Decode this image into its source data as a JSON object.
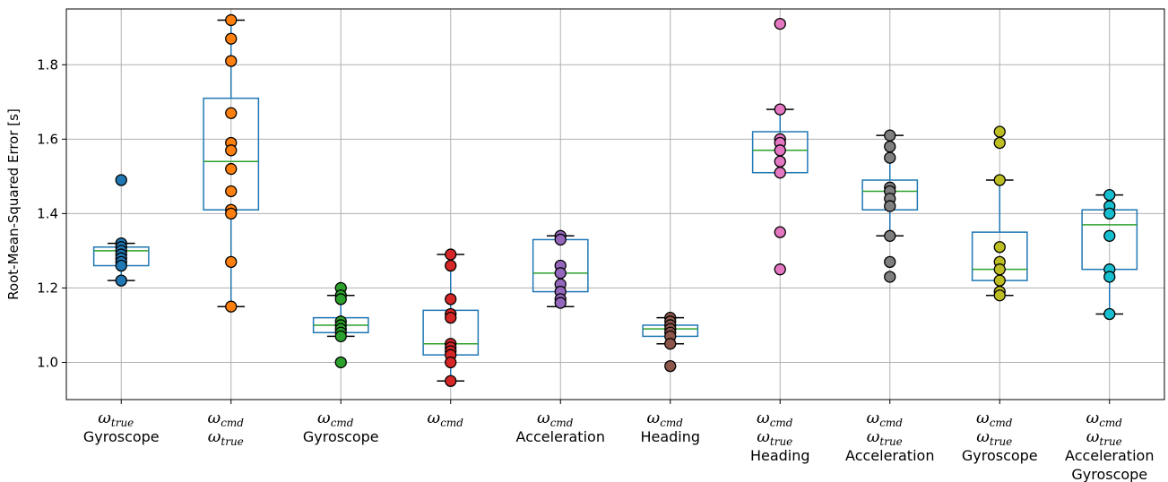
{
  "chart_data": {
    "type": "box",
    "ylabel": "Root-Mean-Squared Error [s]",
    "ylim": [
      0.9,
      1.95
    ],
    "yticks": [
      1.0,
      1.2,
      1.4,
      1.6,
      1.8
    ],
    "grid": true,
    "categories": [
      {
        "lines": [
          {
            "omega": "ω",
            "sub": "true"
          },
          {
            "text": "Gyroscope"
          }
        ]
      },
      {
        "lines": [
          {
            "omega": "ω",
            "sub": "cmd"
          },
          {
            "omega": "ω",
            "sub": "true"
          }
        ]
      },
      {
        "lines": [
          {
            "omega": "ω",
            "sub": "cmd"
          },
          {
            "text": "Gyroscope"
          }
        ]
      },
      {
        "lines": [
          {
            "omega": "ω",
            "sub": "cmd"
          }
        ]
      },
      {
        "lines": [
          {
            "omega": "ω",
            "sub": "cmd"
          },
          {
            "text": "Acceleration"
          }
        ]
      },
      {
        "lines": [
          {
            "omega": "ω",
            "sub": "cmd"
          },
          {
            "text": "Heading"
          }
        ]
      },
      {
        "lines": [
          {
            "omega": "ω",
            "sub": "cmd"
          },
          {
            "omega": "ω",
            "sub": "true"
          },
          {
            "text": "Heading"
          }
        ]
      },
      {
        "lines": [
          {
            "omega": "ω",
            "sub": "cmd"
          },
          {
            "omega": "ω",
            "sub": "true"
          },
          {
            "text": "Acceleration"
          }
        ]
      },
      {
        "lines": [
          {
            "omega": "ω",
            "sub": "cmd"
          },
          {
            "omega": "ω",
            "sub": "true"
          },
          {
            "text": "Gyroscope"
          }
        ]
      },
      {
        "lines": [
          {
            "omega": "ω",
            "sub": "cmd"
          },
          {
            "omega": "ω",
            "sub": "true"
          },
          {
            "text": "Acceleration"
          },
          {
            "text": "Gyroscope"
          }
        ]
      }
    ],
    "boxes": [
      {
        "whisker_low": 1.22,
        "q1": 1.26,
        "median": 1.3,
        "q3": 1.31,
        "whisker_high": 1.32,
        "points": [
          1.49,
          1.32,
          1.31,
          1.3,
          1.29,
          1.28,
          1.27,
          1.26,
          1.22
        ],
        "color": "#1f77b4"
      },
      {
        "whisker_low": 1.15,
        "q1": 1.41,
        "median": 1.54,
        "q3": 1.71,
        "whisker_high": 1.92,
        "points": [
          1.92,
          1.87,
          1.81,
          1.67,
          1.59,
          1.57,
          1.52,
          1.46,
          1.41,
          1.4,
          1.27,
          1.15
        ],
        "color": "#ff7f0e"
      },
      {
        "whisker_low": 1.07,
        "q1": 1.08,
        "median": 1.1,
        "q3": 1.12,
        "whisker_high": 1.18,
        "points": [
          1.2,
          1.18,
          1.17,
          1.11,
          1.1,
          1.09,
          1.08,
          1.07,
          1.0
        ],
        "color": "#2ca02c"
      },
      {
        "whisker_low": 0.95,
        "q1": 1.02,
        "median": 1.05,
        "q3": 1.14,
        "whisker_high": 1.29,
        "points": [
          1.29,
          1.26,
          1.17,
          1.13,
          1.12,
          1.05,
          1.04,
          1.03,
          1.02,
          1.0,
          0.95
        ],
        "color": "#d62728"
      },
      {
        "whisker_low": 1.15,
        "q1": 1.19,
        "median": 1.24,
        "q3": 1.33,
        "whisker_high": 1.34,
        "points": [
          1.34,
          1.33,
          1.26,
          1.24,
          1.21,
          1.19,
          1.17,
          1.16
        ],
        "color": "#9467bd"
      },
      {
        "whisker_low": 1.05,
        "q1": 1.07,
        "median": 1.09,
        "q3": 1.1,
        "whisker_high": 1.12,
        "points": [
          1.12,
          1.11,
          1.1,
          1.09,
          1.08,
          1.07,
          1.05,
          0.99
        ],
        "color": "#8c564b"
      },
      {
        "whisker_low": 1.51,
        "q1": 1.51,
        "median": 1.57,
        "q3": 1.62,
        "whisker_high": 1.68,
        "points": [
          1.91,
          1.68,
          1.6,
          1.59,
          1.57,
          1.54,
          1.51,
          1.35,
          1.25
        ],
        "color": "#e377c2"
      },
      {
        "whisker_low": 1.34,
        "q1": 1.41,
        "median": 1.46,
        "q3": 1.49,
        "whisker_high": 1.61,
        "points": [
          1.61,
          1.58,
          1.55,
          1.47,
          1.46,
          1.44,
          1.42,
          1.34,
          1.27,
          1.23
        ],
        "color": "#7f7f7f"
      },
      {
        "whisker_low": 1.18,
        "q1": 1.22,
        "median": 1.25,
        "q3": 1.35,
        "whisker_high": 1.49,
        "points": [
          1.62,
          1.59,
          1.49,
          1.31,
          1.27,
          1.25,
          1.22,
          1.19,
          1.18
        ],
        "color": "#bcbd22"
      },
      {
        "whisker_low": 1.13,
        "q1": 1.25,
        "median": 1.37,
        "q3": 1.41,
        "whisker_high": 1.45,
        "points": [
          1.45,
          1.42,
          1.4,
          1.34,
          1.25,
          1.23,
          1.13
        ],
        "color": "#17becf"
      }
    ],
    "box_edge_color": "#1f77b4",
    "whisker_color": "#1f77b4",
    "median_color": "#2ca02c",
    "grid_color": "#b0b0b0"
  }
}
